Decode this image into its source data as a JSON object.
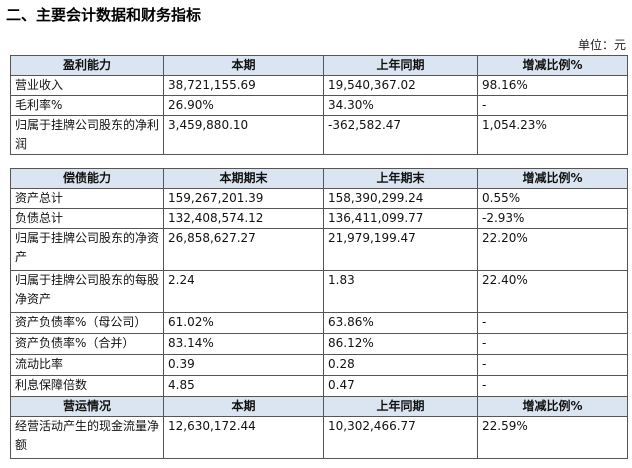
{
  "title": "二、主要会计数据和财务指标",
  "unit": "单位：元",
  "sections": [
    {
      "header": [
        "盈利能力",
        "本期",
        "上年同期",
        "增减比例%"
      ],
      "rows": [
        [
          "营业收入",
          "38,721,155.69",
          "19,540,367.02",
          "98.16%"
        ],
        [
          "毛利率%",
          "26.90%",
          "34.30%",
          "-"
        ],
        [
          "归属于挂牌公司股东的净利润",
          "3,459,880.10",
          "-362,582.47",
          "1,054.23%"
        ]
      ]
    },
    {
      "header": [
        "偿债能力",
        "本期期末",
        "上年期末",
        "增减比例%"
      ],
      "rows": [
        [
          "资产总计",
          "159,267,201.39",
          "158,390,299.24",
          "0.55%"
        ],
        [
          "负债总计",
          "132,408,574.12",
          "136,411,099.77",
          "-2.93%"
        ],
        [
          "归属于挂牌公司股东的净资产",
          "26,858,627.27",
          "21,979,199.47",
          "22.20%"
        ],
        [
          "归属于挂牌公司股东的每股净资产",
          "2.24",
          "1.83",
          "22.40%"
        ],
        [
          "资产负债率%（母公司）",
          "61.02%",
          "63.86%",
          "-"
        ],
        [
          "资产负债率%（合并）",
          "83.14%",
          "86.12%",
          "-"
        ],
        [
          "流动比率",
          "0.39",
          "0.28",
          "-"
        ],
        [
          "利息保障倍数",
          "4.85",
          "0.47",
          "-"
        ]
      ]
    },
    {
      "header": [
        "营运情况",
        "本期",
        "上年同期",
        "增减比例%"
      ],
      "rows": [
        [
          "经营活动产生的现金流量净额",
          "12,630,172.44",
          "10,302,466.77",
          "22.59%"
        ]
      ]
    }
  ]
}
